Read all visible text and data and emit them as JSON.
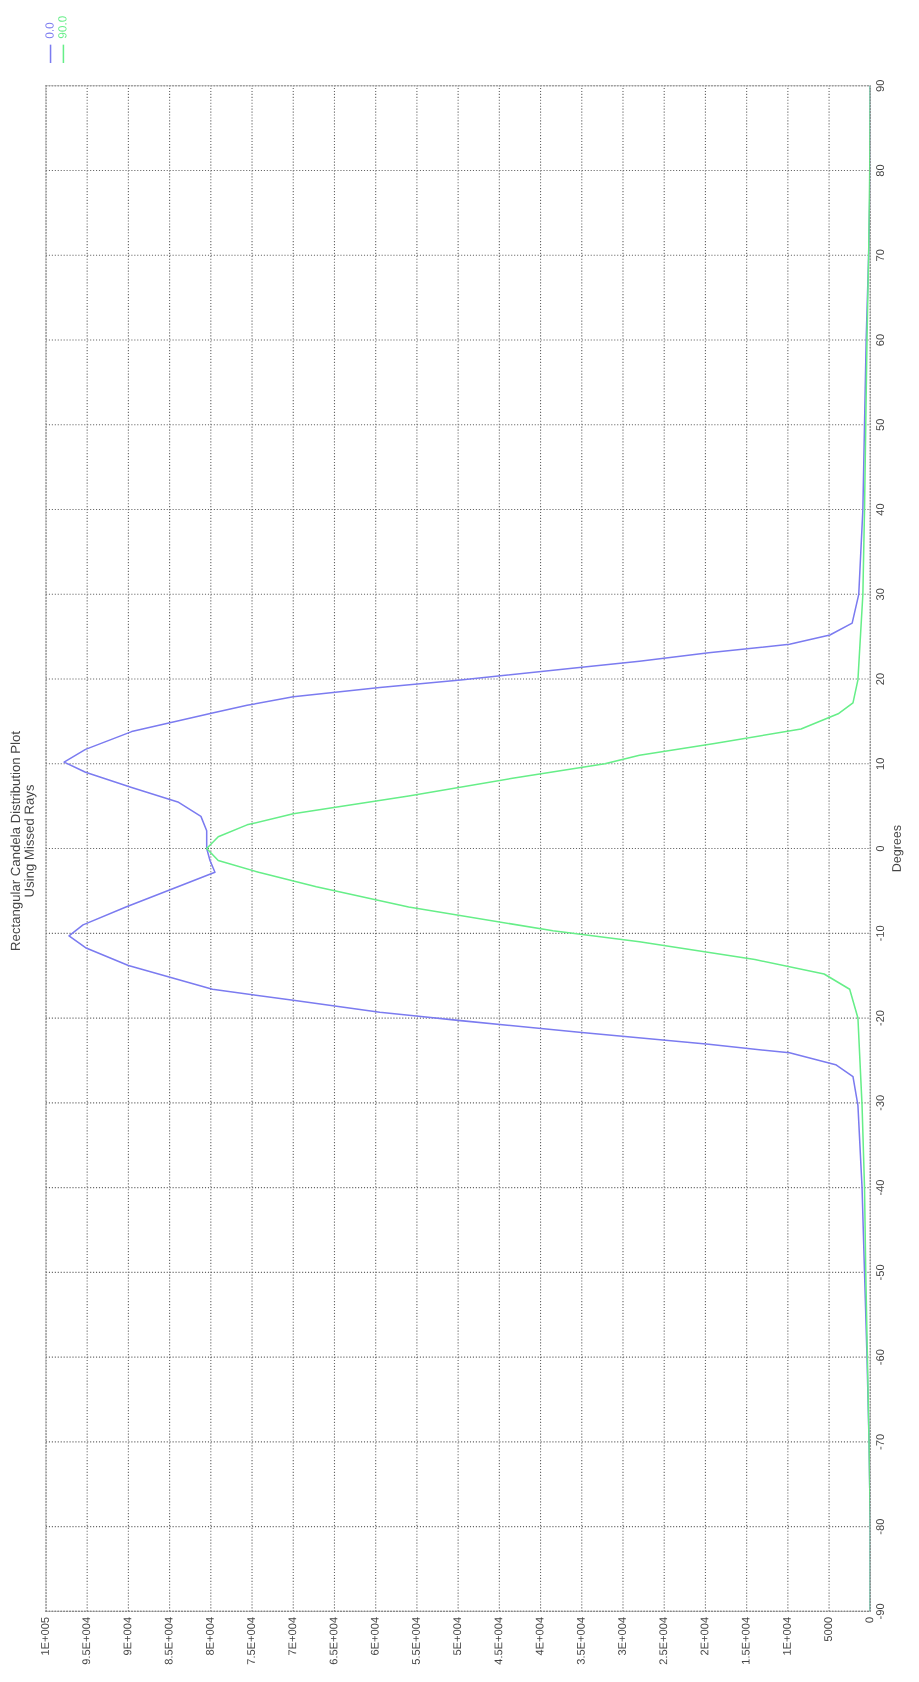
{
  "chart_data": {
    "type": "line",
    "title": "Rectangular Candela Distribution Plot",
    "subtitle": "Using Missed Rays",
    "ylabel": "Degrees",
    "ylim": [
      -90,
      90
    ],
    "yticks": [
      -90,
      -80,
      -70,
      -60,
      -50,
      -40,
      -30,
      -20,
      -10,
      0,
      10,
      20,
      30,
      40,
      50,
      60,
      70,
      80,
      90
    ],
    "xlim": [
      100000,
      0
    ],
    "xticks": [
      0,
      5000,
      {
        "value": 10000,
        "label": "1E+004"
      },
      {
        "value": 15000,
        "label": "1.5E+004"
      },
      {
        "value": 20000,
        "label": "2E+004"
      },
      {
        "value": 25000,
        "label": "2.5E+004"
      },
      {
        "value": 30000,
        "label": "3E+004"
      },
      {
        "value": 35000,
        "label": "3.5E+004"
      },
      {
        "value": 40000,
        "label": "4E+004"
      },
      {
        "value": 45000,
        "label": "4.5E+004"
      },
      {
        "value": 50000,
        "label": "5E+004"
      },
      {
        "value": 55000,
        "label": "5.5E+004"
      },
      {
        "value": 60000,
        "label": "6E+004"
      },
      {
        "value": 65000,
        "label": "6.5E+004"
      },
      {
        "value": 70000,
        "label": "7E+004"
      },
      {
        "value": 75000,
        "label": "7.5E+004"
      },
      {
        "value": 80000,
        "label": "8E+004"
      },
      {
        "value": 85000,
        "label": "8.5E+004"
      },
      {
        "value": 90000,
        "label": "9E+004"
      },
      {
        "value": 95000,
        "label": "9.5E+004"
      },
      {
        "value": 100000,
        "label": "1E+005"
      }
    ],
    "grid": true,
    "legend": "top left",
    "line_style": "solid",
    "marker": "none",
    "series": [
      {
        "name": "0.0",
        "color": "#7b7bf0",
        "values": [
          -90,
          -80,
          -70,
          -60,
          -50,
          -40,
          -30.3,
          -26.9,
          -25.5,
          -24.1,
          -23.1,
          -21.7,
          -20.3,
          -19.3,
          -17.9,
          -16.6,
          -13.8,
          -11.7,
          -10.3,
          -9.0,
          -6.9,
          -4.5,
          -2.8,
          -1.4,
          0,
          2.1,
          3.8,
          5.5,
          7.2,
          9.0,
          10.2,
          11.7,
          13.8,
          16.0,
          16.9,
          17.9,
          19.0,
          19.9,
          21.4,
          22.1,
          23.1,
          24.1,
          25.2,
          26.6,
          30,
          40,
          50,
          60,
          70,
          80,
          90
        ],
        "x": [
          0,
          0,
          150,
          400,
          700,
          1000,
          1500,
          2100,
          4200,
          9800,
          19600,
          35000,
          49700,
          59500,
          70000,
          79800,
          90000,
          95200,
          97200,
          95500,
          90300,
          84000,
          79500,
          80100,
          80500,
          80500,
          81200,
          84000,
          89600,
          95200,
          97800,
          95200,
          89600,
          79800,
          75600,
          70000,
          59500,
          49700,
          35000,
          28000,
          19600,
          9800,
          4900,
          2200,
          1400,
          900,
          700,
          500,
          200,
          0,
          0
        ]
      },
      {
        "name": "90.0",
        "color": "#66ee88",
        "values": [
          -90,
          -80,
          -70,
          -60,
          -50,
          -40,
          -30.3,
          -20,
          -16.6,
          -14.8,
          -13.1,
          -11.0,
          -9.7,
          -6.9,
          -4.5,
          -2.8,
          -1.4,
          0,
          1.4,
          2.8,
          4.1,
          6.2,
          8.3,
          10.0,
          11.0,
          12.4,
          14.1,
          15.9,
          17.2,
          19.9,
          30,
          40,
          50,
          60,
          70,
          80,
          90
        ],
        "x": [
          0,
          0,
          150,
          350,
          550,
          700,
          1000,
          1500,
          2500,
          5600,
          14000,
          28000,
          38500,
          56000,
          67200,
          74200,
          79100,
          80500,
          79100,
          75600,
          70000,
          56000,
          43400,
          32200,
          28000,
          18900,
          8400,
          3900,
          2100,
          1500,
          900,
          700,
          550,
          400,
          200,
          70,
          0
        ]
      }
    ]
  }
}
